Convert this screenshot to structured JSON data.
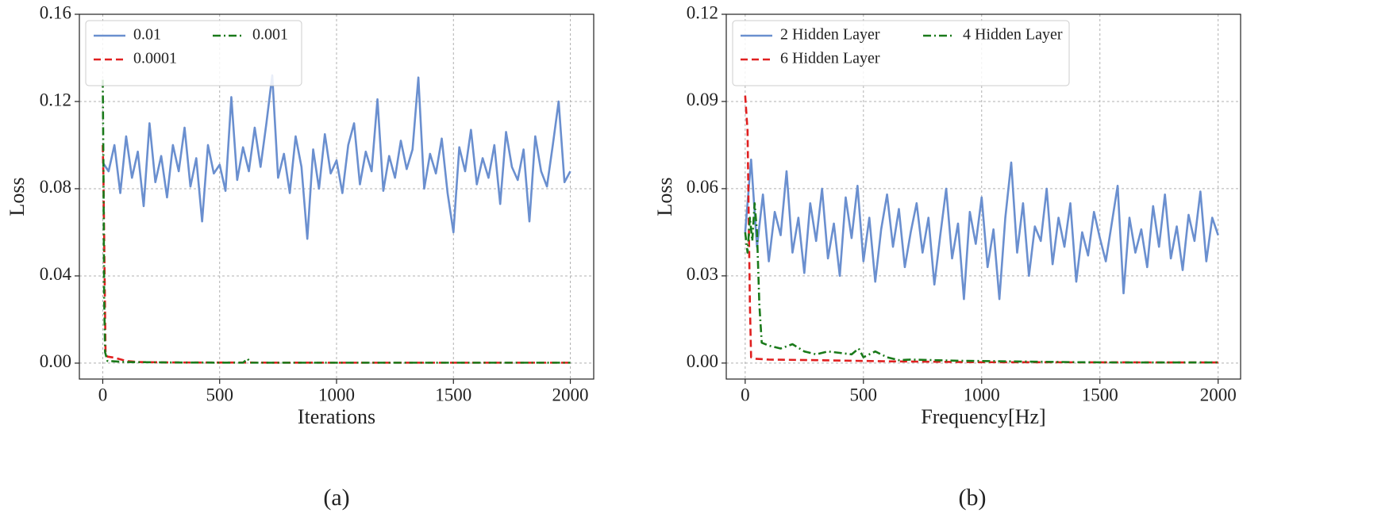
{
  "chart_data": [
    {
      "type": "line",
      "caption": "(a)",
      "xlabel": "Iterations",
      "ylabel": "Loss",
      "xlim": [
        -100,
        2100
      ],
      "ylim": [
        -0.0073,
        0.16
      ],
      "xticks": [
        0,
        500,
        1000,
        1500,
        2000
      ],
      "yticks": [
        {
          "value": 0,
          "label": "0.00"
        },
        0.04,
        0.08,
        0.12,
        0.16
      ],
      "grid": true,
      "legend": "upper left",
      "legend_columns": 2,
      "series": [
        {
          "name": "0.01",
          "color": "#6a8fcf",
          "style": "solid",
          "x": [
            0,
            25,
            50,
            75,
            100,
            125,
            150,
            175,
            200,
            225,
            250,
            275,
            300,
            325,
            350,
            375,
            400,
            425,
            450,
            475,
            500,
            525,
            550,
            575,
            600,
            625,
            650,
            675,
            700,
            725,
            750,
            775,
            800,
            825,
            850,
            875,
            900,
            925,
            950,
            975,
            1000,
            1025,
            1050,
            1075,
            1100,
            1125,
            1150,
            1175,
            1200,
            1225,
            1250,
            1275,
            1300,
            1325,
            1350,
            1375,
            1400,
            1425,
            1450,
            1475,
            1500,
            1525,
            1550,
            1575,
            1600,
            1625,
            1650,
            1675,
            1700,
            1725,
            1750,
            1775,
            1800,
            1825,
            1850,
            1875,
            1900,
            1925,
            1950,
            1975,
            2000
          ],
          "values": [
            0.092,
            0.088,
            0.1,
            0.078,
            0.104,
            0.085,
            0.097,
            0.072,
            0.11,
            0.083,
            0.095,
            0.076,
            0.1,
            0.088,
            0.108,
            0.081,
            0.094,
            0.065,
            0.1,
            0.087,
            0.091,
            0.079,
            0.122,
            0.084,
            0.099,
            0.088,
            0.108,
            0.09,
            0.11,
            0.132,
            0.085,
            0.096,
            0.078,
            0.104,
            0.09,
            0.057,
            0.098,
            0.08,
            0.105,
            0.087,
            0.093,
            0.078,
            0.1,
            0.11,
            0.082,
            0.097,
            0.088,
            0.121,
            0.079,
            0.095,
            0.085,
            0.102,
            0.089,
            0.098,
            0.131,
            0.08,
            0.096,
            0.087,
            0.103,
            0.078,
            0.06,
            0.099,
            0.088,
            0.107,
            0.082,
            0.094,
            0.085,
            0.1,
            0.073,
            0.106,
            0.09,
            0.084,
            0.098,
            0.065,
            0.104,
            0.088,
            0.081,
            0.1,
            0.12,
            0.083,
            0.088
          ]
        },
        {
          "name": "0.0001",
          "color": "#e02020",
          "style": "dashed",
          "x": [
            0,
            3,
            8,
            12,
            20,
            50,
            100,
            150,
            300,
            1000,
            2000
          ],
          "values": [
            0.1,
            0.085,
            0.04,
            0.004,
            0.003,
            0.0025,
            0.001,
            0.0005,
            0.0003,
            0.0002,
            0.0002
          ]
        },
        {
          "name": "0.001",
          "color": "#1a7a1a",
          "style": "dashdot",
          "x": [
            0,
            3,
            6,
            10,
            20,
            50,
            100,
            300,
            600,
            620,
            630,
            1000,
            2000
          ],
          "values": [
            0.13,
            0.09,
            0.03,
            0.005,
            0.001,
            0.0008,
            0.0005,
            0.0003,
            0.0002,
            0.002,
            0.0002,
            0.0002,
            0.0002
          ]
        }
      ]
    },
    {
      "type": "line",
      "caption": "(b)",
      "xlabel": "Frequency[Hz]",
      "ylabel": "Loss",
      "xlim": [
        -80,
        2095
      ],
      "ylim": [
        -0.0055,
        0.12
      ],
      "xticks": [
        0,
        500,
        1000,
        1500,
        2000
      ],
      "yticks": [
        {
          "value": 0,
          "label": "0.00"
        },
        0.03,
        0.06,
        0.09,
        0.12
      ],
      "grid": true,
      "legend": "upper left",
      "legend_columns": 2,
      "series": [
        {
          "name": "2 Hidden Layer",
          "color": "#6a8fcf",
          "style": "solid",
          "x": [
            0,
            25,
            50,
            75,
            100,
            125,
            150,
            175,
            200,
            225,
            250,
            275,
            300,
            325,
            350,
            375,
            400,
            425,
            450,
            475,
            500,
            525,
            550,
            575,
            600,
            625,
            650,
            675,
            700,
            725,
            750,
            775,
            800,
            825,
            850,
            875,
            900,
            925,
            950,
            975,
            1000,
            1025,
            1050,
            1075,
            1100,
            1125,
            1150,
            1175,
            1200,
            1225,
            1250,
            1275,
            1300,
            1325,
            1350,
            1375,
            1400,
            1425,
            1450,
            1475,
            1500,
            1525,
            1550,
            1575,
            1600,
            1625,
            1650,
            1675,
            1700,
            1725,
            1750,
            1775,
            1800,
            1825,
            1850,
            1875,
            1900,
            1925,
            1950,
            1975,
            2000
          ],
          "values": [
            0.045,
            0.07,
            0.04,
            0.058,
            0.035,
            0.052,
            0.044,
            0.066,
            0.038,
            0.05,
            0.031,
            0.055,
            0.042,
            0.06,
            0.036,
            0.048,
            0.03,
            0.057,
            0.043,
            0.061,
            0.035,
            0.05,
            0.028,
            0.046,
            0.058,
            0.04,
            0.053,
            0.033,
            0.045,
            0.055,
            0.038,
            0.05,
            0.027,
            0.044,
            0.06,
            0.036,
            0.048,
            0.022,
            0.052,
            0.041,
            0.057,
            0.033,
            0.046,
            0.022,
            0.05,
            0.069,
            0.038,
            0.055,
            0.03,
            0.047,
            0.042,
            0.06,
            0.034,
            0.05,
            0.04,
            0.055,
            0.028,
            0.045,
            0.037,
            0.052,
            0.043,
            0.035,
            0.048,
            0.061,
            0.024,
            0.05,
            0.038,
            0.046,
            0.033,
            0.054,
            0.04,
            0.058,
            0.036,
            0.047,
            0.032,
            0.051,
            0.042,
            0.059,
            0.035,
            0.05,
            0.044
          ]
        },
        {
          "name": "6 Hidden Layer",
          "color": "#e02020",
          "style": "dashed",
          "x": [
            0,
            10,
            15,
            20,
            25,
            40,
            100,
            300,
            600,
            1000,
            2000
          ],
          "values": [
            0.092,
            0.08,
            0.05,
            0.02,
            0.002,
            0.0015,
            0.0012,
            0.001,
            0.0006,
            0.0003,
            0.0002
          ]
        },
        {
          "name": "4 Hidden Layer",
          "color": "#1a7a1a",
          "style": "dashdot",
          "x": [
            0,
            10,
            20,
            30,
            40,
            50,
            60,
            70,
            100,
            150,
            200,
            250,
            300,
            350,
            400,
            450,
            480,
            500,
            550,
            600,
            650,
            700,
            800,
            900,
            1000,
            1100,
            1200,
            1300,
            1400,
            1600,
            2000
          ],
          "values": [
            0.045,
            0.038,
            0.05,
            0.042,
            0.055,
            0.045,
            0.02,
            0.007,
            0.006,
            0.005,
            0.0065,
            0.004,
            0.003,
            0.004,
            0.0035,
            0.003,
            0.005,
            0.002,
            0.004,
            0.002,
            0.001,
            0.0012,
            0.001,
            0.0008,
            0.0007,
            0.0006,
            0.0005,
            0.0004,
            0.0003,
            0.0002,
            0.0002
          ]
        }
      ]
    }
  ]
}
